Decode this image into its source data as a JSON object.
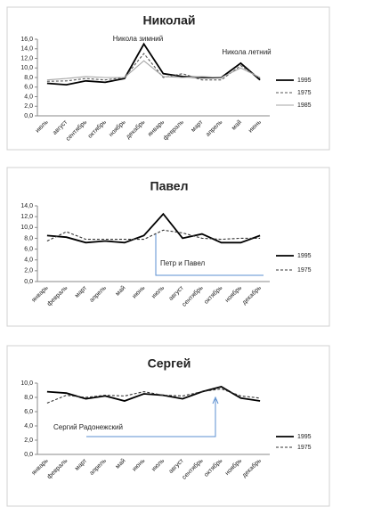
{
  "chart_data": [
    {
      "type": "line",
      "title": "Николай",
      "categories": [
        "июль",
        "август",
        "сентябрь",
        "октябрь",
        "ноябрь",
        "декабрь",
        "январь",
        "февраль",
        "март",
        "апрель",
        "май",
        "июнь"
      ],
      "series": [
        {
          "name": "1995",
          "color": "#000000",
          "line_style": "solid",
          "values": [
            6.8,
            6.5,
            7.3,
            7.0,
            7.8,
            15.0,
            8.8,
            8.2,
            8.0,
            8.0,
            11.0,
            7.5
          ]
        },
        {
          "name": "1975",
          "color": "#555555",
          "line_style": "dashed",
          "values": [
            7.2,
            7.3,
            7.8,
            7.5,
            8.0,
            13.0,
            8.0,
            8.8,
            7.5,
            7.5,
            10.5,
            7.8
          ]
        },
        {
          "name": "1985",
          "color": "#a6a6a6",
          "line_style": "solid",
          "values": [
            7.5,
            7.8,
            8.2,
            8.0,
            8.0,
            11.5,
            8.2,
            8.0,
            8.2,
            8.0,
            10.0,
            8.0
          ]
        }
      ],
      "ylim": [
        0,
        16
      ],
      "yticks": [
        {
          "value": 0,
          "label": "0,0"
        },
        {
          "value": 2,
          "label": "2,0"
        },
        {
          "value": 4,
          "label": "4,0"
        },
        {
          "value": 6,
          "label": "6,0"
        },
        {
          "value": 8,
          "label": "8,0"
        },
        {
          "value": 10,
          "label": "10,0"
        },
        {
          "value": 12,
          "label": "12,0"
        },
        {
          "value": 14,
          "label": "14,0"
        },
        {
          "value": 16,
          "label": "16,0"
        }
      ],
      "annotations": [
        {
          "text": "Никола зимний"
        },
        {
          "text": "Никола летний"
        }
      ]
    },
    {
      "type": "line",
      "title": "Павел",
      "categories": [
        "январь",
        "февраль",
        "март",
        "апрель",
        "май",
        "июнь",
        "июль",
        "август",
        "сентябрь",
        "октябрь",
        "ноябрь",
        "декабрь"
      ],
      "series": [
        {
          "name": "1995",
          "color": "#000000",
          "line_style": "solid",
          "values": [
            8.5,
            8.2,
            7.2,
            7.5,
            7.2,
            8.5,
            12.5,
            8.0,
            8.8,
            7.2,
            7.2,
            8.5
          ]
        },
        {
          "name": "1975",
          "color": "#333333",
          "line_style": "dashed",
          "values": [
            7.5,
            9.2,
            7.8,
            7.8,
            7.8,
            7.8,
            9.5,
            9.0,
            8.0,
            7.8,
            8.0,
            8.0
          ]
        }
      ],
      "ylim": [
        0,
        14
      ],
      "yticks": [
        {
          "value": 0,
          "label": "0,0"
        },
        {
          "value": 2,
          "label": "2,0"
        },
        {
          "value": 4,
          "label": "4,0"
        },
        {
          "value": 6,
          "label": "6,0"
        },
        {
          "value": 8,
          "label": "8,0"
        },
        {
          "value": 10,
          "label": "10,0"
        },
        {
          "value": 12,
          "label": "12,0"
        },
        {
          "value": 14,
          "label": "14,0"
        }
      ],
      "annotations": [
        {
          "text": "Петр и Павел"
        }
      ]
    },
    {
      "type": "line",
      "title": "Сергей",
      "categories": [
        "январь",
        "февраль",
        "март",
        "апрель",
        "май",
        "июнь",
        "июль",
        "август",
        "сентябрь",
        "октябрь",
        "ноябрь",
        "декабрь"
      ],
      "series": [
        {
          "name": "1995",
          "color": "#000000",
          "line_style": "solid",
          "values": [
            8.8,
            8.6,
            7.8,
            8.2,
            7.5,
            8.5,
            8.3,
            7.8,
            8.8,
            9.5,
            7.9,
            7.5
          ]
        },
        {
          "name": "1975",
          "color": "#333333",
          "line_style": "dashed",
          "values": [
            7.2,
            8.3,
            8.0,
            8.3,
            8.2,
            8.8,
            8.3,
            8.2,
            8.8,
            9.2,
            8.2,
            7.9
          ]
        }
      ],
      "ylim": [
        0,
        10
      ],
      "yticks": [
        {
          "value": 0,
          "label": "0,0"
        },
        {
          "value": 2,
          "label": "2,0"
        },
        {
          "value": 4,
          "label": "4,0"
        },
        {
          "value": 6,
          "label": "6,0"
        },
        {
          "value": 8,
          "label": "8,0"
        },
        {
          "value": 10,
          "label": "10,0"
        }
      ],
      "annotations": [
        {
          "text": "Сергий Радонежский"
        }
      ]
    }
  ]
}
